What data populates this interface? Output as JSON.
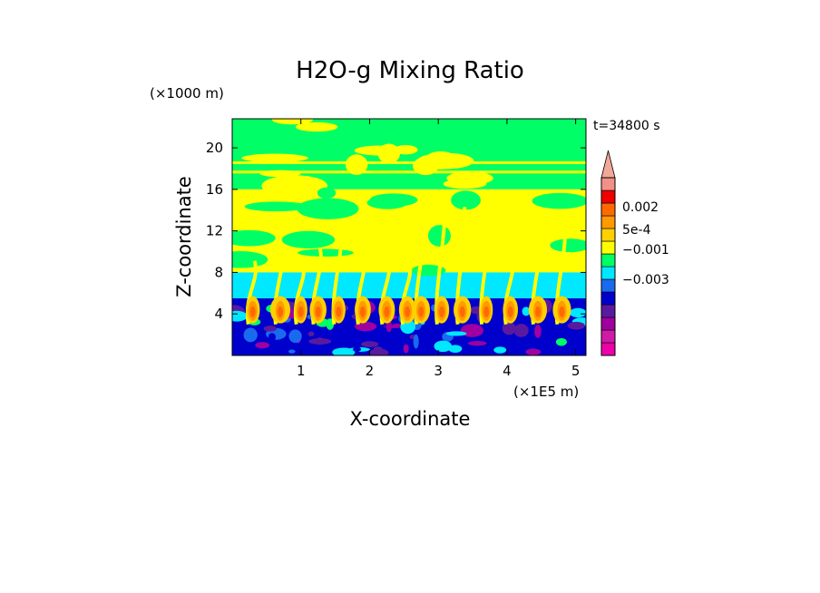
{
  "chart_data": {
    "type": "heatmap",
    "title": "H2O-g Mixing Ratio",
    "xlabel": "X-coordinate",
    "ylabel": "Z-coordinate",
    "x_unit": "(×1E5 m)",
    "y_unit": "(×1000 m)",
    "time_label": "t=34800 s",
    "xlim": [
      0,
      5.15
    ],
    "ylim": [
      0,
      22.8
    ],
    "x_ticks": [
      1,
      2,
      3,
      4,
      5
    ],
    "y_ticks": [
      4,
      8,
      12,
      16,
      20
    ],
    "x_tick_labels": [
      "1",
      "2",
      "3",
      "4",
      "5"
    ],
    "y_tick_labels": [
      "4",
      "8",
      "12",
      "16",
      "20"
    ],
    "colorbar": {
      "labels": [
        "0.002",
        "5e-4",
        "−0.001",
        "−0.003"
      ],
      "colors": [
        "#ee00aa",
        "#d01ba6",
        "#a000a0",
        "#5a1aa0",
        "#0000cc",
        "#1a6af0",
        "#00e8ff",
        "#00ff66",
        "#ffff00",
        "#ffd000",
        "#ff9a00",
        "#ff6a00",
        "#ee0000",
        "#f09088"
      ],
      "top_color": "#f0a898"
    },
    "layers": [
      {
        "name": "upper",
        "z_range": [
          16,
          22.8
        ],
        "dominant_color": "#00ff66",
        "secondary_color": "#ffff00"
      },
      {
        "name": "middle",
        "z_range": [
          8,
          16
        ],
        "dominant_color": "#ffff00",
        "secondary_color": "#00ff66"
      },
      {
        "name": "cyan band",
        "z_range": [
          5.5,
          8
        ],
        "dominant_color": "#00e8ff"
      },
      {
        "name": "boundary layer",
        "z_range": [
          0,
          5.5
        ],
        "dominant_color": "#0000cc",
        "secondary_color": "#ff6a00"
      }
    ],
    "plumes_x": [
      0.3,
      0.7,
      1.0,
      1.25,
      1.55,
      1.9,
      2.25,
      2.55,
      2.75,
      3.05,
      3.35,
      3.7,
      4.05,
      4.45,
      4.8
    ]
  }
}
